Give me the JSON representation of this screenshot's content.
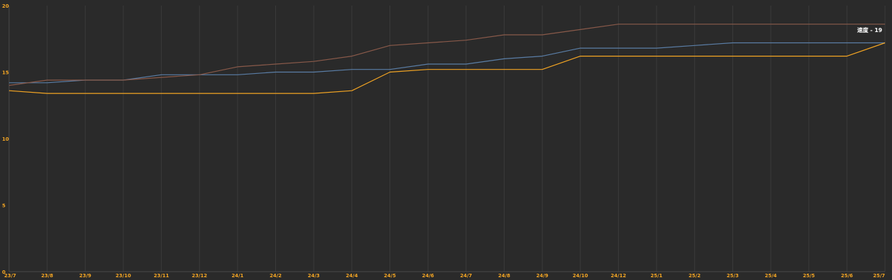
{
  "chart_data": {
    "type": "line",
    "title": "",
    "xlabel": "",
    "ylabel": "",
    "ylim": [
      0,
      20
    ],
    "yticks": [
      "0",
      "5",
      "10",
      "15",
      "20"
    ],
    "grid": true,
    "categories": [
      "23/7",
      "23/8",
      "23/9",
      "23/10",
      "23/11",
      "23/12",
      "24/1",
      "24/2",
      "24/3",
      "24/4",
      "24/5",
      "24/6",
      "24/7",
      "24/8",
      "24/9",
      "24/10",
      "24/12",
      "25/1",
      "25/2",
      "25/3",
      "25/4",
      "25/5",
      "25/6",
      "25/7"
    ],
    "series": [
      {
        "color": "#5b7fa8",
        "values": [
          14.2,
          14.2,
          14.4,
          14.4,
          14.8,
          14.8,
          14.8,
          15.0,
          15.0,
          15.2,
          15.2,
          15.6,
          15.6,
          16.0,
          16.2,
          16.8,
          16.8,
          16.8,
          17.0,
          17.2,
          17.2,
          17.2,
          17.2,
          17.2
        ]
      },
      {
        "color": "#f5a623",
        "values": [
          13.6,
          13.4,
          13.4,
          13.4,
          13.4,
          13.4,
          13.4,
          13.4,
          13.4,
          13.6,
          15.0,
          15.2,
          15.2,
          15.2,
          15.2,
          16.2,
          16.2,
          16.2,
          16.2,
          16.2,
          16.2,
          16.2,
          16.2,
          17.2
        ]
      },
      {
        "color": "#8a5a4a",
        "values": [
          14.0,
          14.4,
          14.4,
          14.4,
          14.6,
          14.8,
          15.4,
          15.6,
          15.8,
          16.2,
          17.0,
          17.2,
          17.4,
          17.8,
          17.8,
          18.2,
          18.6,
          18.6,
          18.6,
          18.6,
          18.6,
          18.6,
          18.6,
          18.6
        ]
      }
    ],
    "tooltip": "速度 - 19"
  }
}
